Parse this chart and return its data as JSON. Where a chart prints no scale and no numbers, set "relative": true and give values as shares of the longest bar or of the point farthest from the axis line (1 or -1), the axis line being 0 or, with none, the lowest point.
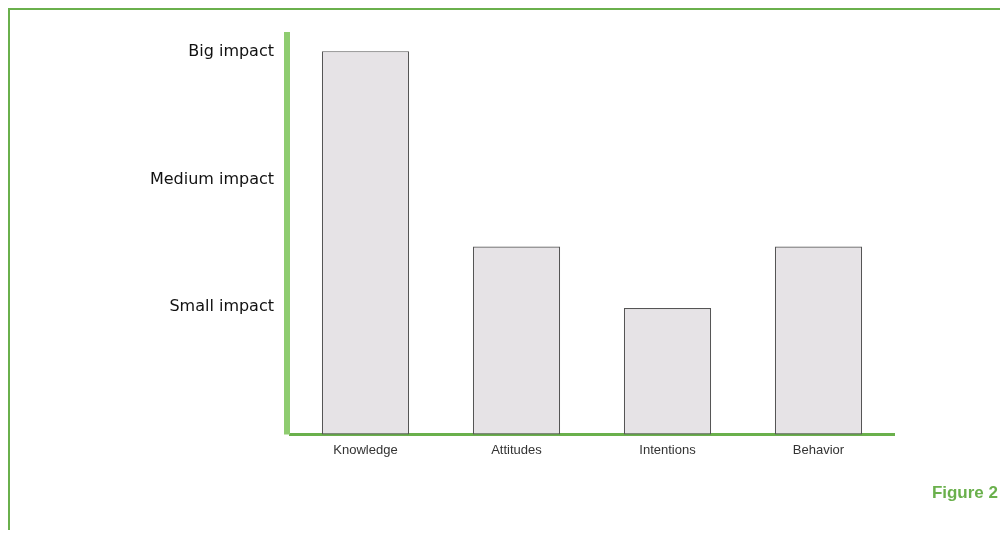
{
  "chart_data": {
    "type": "bar",
    "categories": [
      "Knowledge",
      "Attitudes",
      "Intentions",
      "Behavior"
    ],
    "values": [
      1,
      0.49,
      0.33,
      0.49
    ],
    "color": "#e6e3e6",
    "relative": true,
    "grid": false,
    "legend": false,
    "annotations": [
      "Big impact",
      "Medium impact",
      "Small impact",
      "Figure 2"
    ]
  }
}
